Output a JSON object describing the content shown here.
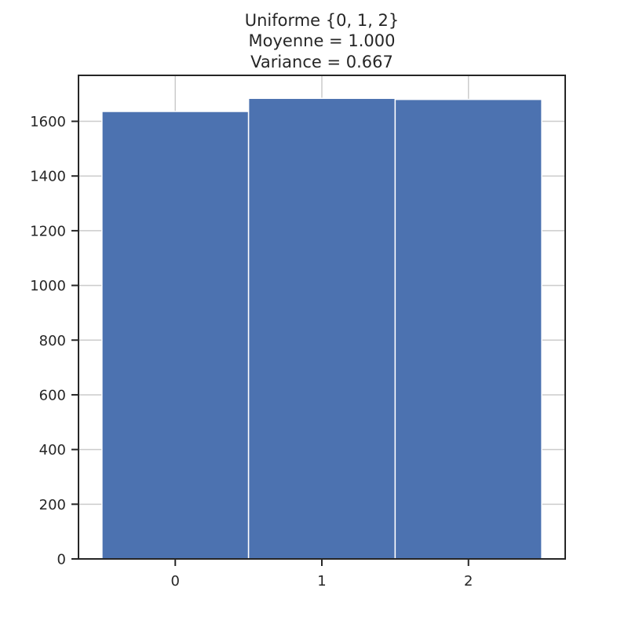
{
  "chart_data": {
    "type": "bar",
    "title_lines": [
      "Uniforme {0, 1, 2}",
      "Moyenne =  1.000",
      "Variance =  0.667"
    ],
    "categories": [
      "0",
      "1",
      "2"
    ],
    "x": [
      0,
      1,
      2
    ],
    "values": [
      1636,
      1684,
      1680
    ],
    "xlim": [
      -0.66,
      2.66
    ],
    "ylim": [
      0,
      1768
    ],
    "yticks": [
      0,
      200,
      400,
      600,
      800,
      1000,
      1200,
      1400,
      1600
    ],
    "xticks": [
      0,
      1,
      2
    ],
    "xlabel": "",
    "ylabel": "",
    "grid": true,
    "colors": {
      "bar": "#4c72b0",
      "bar_edge": "#ffffff",
      "grid": "#cccccc",
      "axis": "#262626",
      "text": "#262626"
    }
  }
}
